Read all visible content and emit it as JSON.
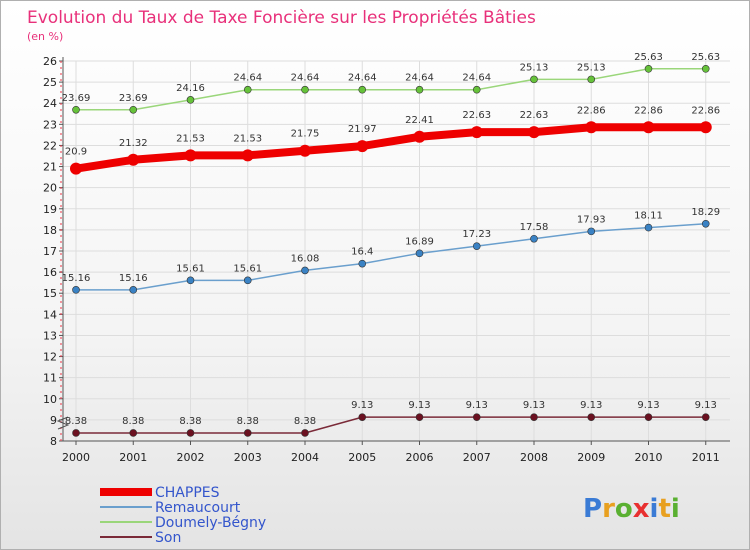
{
  "chart_data": {
    "type": "line",
    "title": "Evolution du Taux de Taxe Foncière sur les Propriétés Bâties",
    "subtitle": "(en %)",
    "x": [
      "2000",
      "2001",
      "2002",
      "2003",
      "2004",
      "2005",
      "2006",
      "2007",
      "2008",
      "2009",
      "2010",
      "2011"
    ],
    "ylim": [
      8,
      26
    ],
    "yticks": [
      "8",
      "9",
      "10",
      "11",
      "12",
      "13",
      "14",
      "15",
      "16",
      "17",
      "18",
      "19",
      "20",
      "21",
      "22",
      "23",
      "24",
      "25",
      "26"
    ],
    "series": [
      {
        "name": "CHAPPES",
        "color": "#ee0000",
        "thick": true,
        "values": [
          20.9,
          21.32,
          21.53,
          21.53,
          21.75,
          21.97,
          22.41,
          22.63,
          22.63,
          22.86,
          22.86,
          22.86
        ],
        "labels": [
          "20.9",
          "21.32",
          "21.53",
          "21.53",
          "21.75",
          "21.97",
          "22.41",
          "22.63",
          "22.63",
          "22.86",
          "22.86",
          "22.86"
        ]
      },
      {
        "name": "Remaucourt",
        "color": "#6a9fcd",
        "dot": "#3a82c4",
        "values": [
          15.16,
          15.16,
          15.61,
          15.61,
          16.08,
          16.4,
          16.89,
          17.23,
          17.58,
          17.93,
          18.11,
          18.29
        ],
        "labels": [
          "15.16",
          "15.16",
          "15.61",
          "15.61",
          "16.08",
          "16.4",
          "16.89",
          "17.23",
          "17.58",
          "17.93",
          "18.11",
          "18.29"
        ]
      },
      {
        "name": "Doumely-Bégny",
        "color": "#9ad67a",
        "dot": "#66c23a",
        "values": [
          23.69,
          23.69,
          24.16,
          24.64,
          24.64,
          24.64,
          24.64,
          24.64,
          25.13,
          25.13,
          25.63,
          25.63
        ],
        "labels": [
          "23.69",
          "23.69",
          "24.16",
          "24.64",
          "24.64",
          "24.64",
          "24.64",
          "24.64",
          "25.13",
          "25.13",
          "25.63",
          "25.63"
        ]
      },
      {
        "name": "Son",
        "color": "#7a2a38",
        "dot": "#6b1020",
        "values": [
          8.38,
          8.38,
          8.38,
          8.38,
          8.38,
          9.13,
          9.13,
          9.13,
          9.13,
          9.13,
          9.13,
          9.13
        ],
        "labels": [
          "8.38",
          "8.38",
          "8.38",
          "8.38",
          "8.38",
          "9.13",
          "9.13",
          "9.13",
          "9.13",
          "9.13",
          "9.13",
          "9.13"
        ]
      }
    ],
    "legend_position": "bottom-left"
  },
  "logo": {
    "letters": [
      {
        "ch": "P",
        "color": "#3a7bd5"
      },
      {
        "ch": "r",
        "color": "#e8a020"
      },
      {
        "ch": "o",
        "color": "#5ab031"
      },
      {
        "ch": "x",
        "color": "#e83030"
      },
      {
        "ch": "i",
        "color": "#3a7bd5"
      },
      {
        "ch": "t",
        "color": "#e8a020"
      },
      {
        "ch": "i",
        "color": "#5ab031"
      }
    ]
  }
}
